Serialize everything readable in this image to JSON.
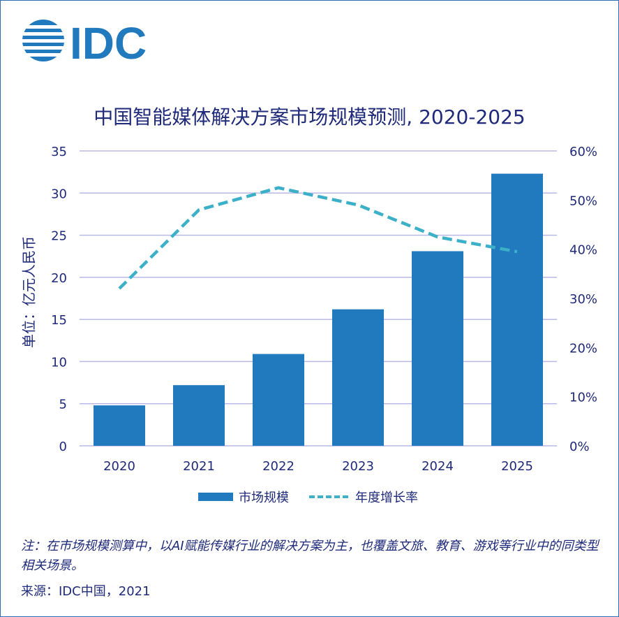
{
  "logo_text": "IDC",
  "title": "中国智能媒体解决方案市场规模预测, 2020-2025",
  "ylabel_left": "单位：亿元人民币",
  "note": "注：在市场规模测算中，以AI赋能传媒行业的解决方案为主，也覆盖文旅、教育、游戏等行业中的同类型相关场景。",
  "source": "来源：IDC中国，2021",
  "colors": {
    "bar": "#2179be",
    "line": "#3bb0c8",
    "text": "#1f2a7a",
    "grid": "#b9b9e6"
  },
  "chart_data": {
    "type": "bar",
    "categories": [
      "2020",
      "2021",
      "2022",
      "2023",
      "2024",
      "2025"
    ],
    "series": [
      {
        "name": "市场规模",
        "type": "bar",
        "axis": "left",
        "values": [
          4.8,
          7.2,
          10.9,
          16.2,
          23.1,
          32.3
        ]
      },
      {
        "name": "年度增长率",
        "type": "line",
        "style": "dashed",
        "axis": "right",
        "values": [
          0.32,
          0.48,
          0.525,
          0.49,
          0.425,
          0.395
        ]
      }
    ],
    "ylim_left": [
      0,
      35
    ],
    "yticks_left": [
      "0",
      "5",
      "10",
      "15",
      "20",
      "25",
      "30",
      "35"
    ],
    "ylim_right": [
      0,
      0.6
    ],
    "yticks_right": [
      "0%",
      "10%",
      "20%",
      "30%",
      "40%",
      "50%",
      "60%"
    ],
    "grid": true,
    "legend": "bottom"
  }
}
